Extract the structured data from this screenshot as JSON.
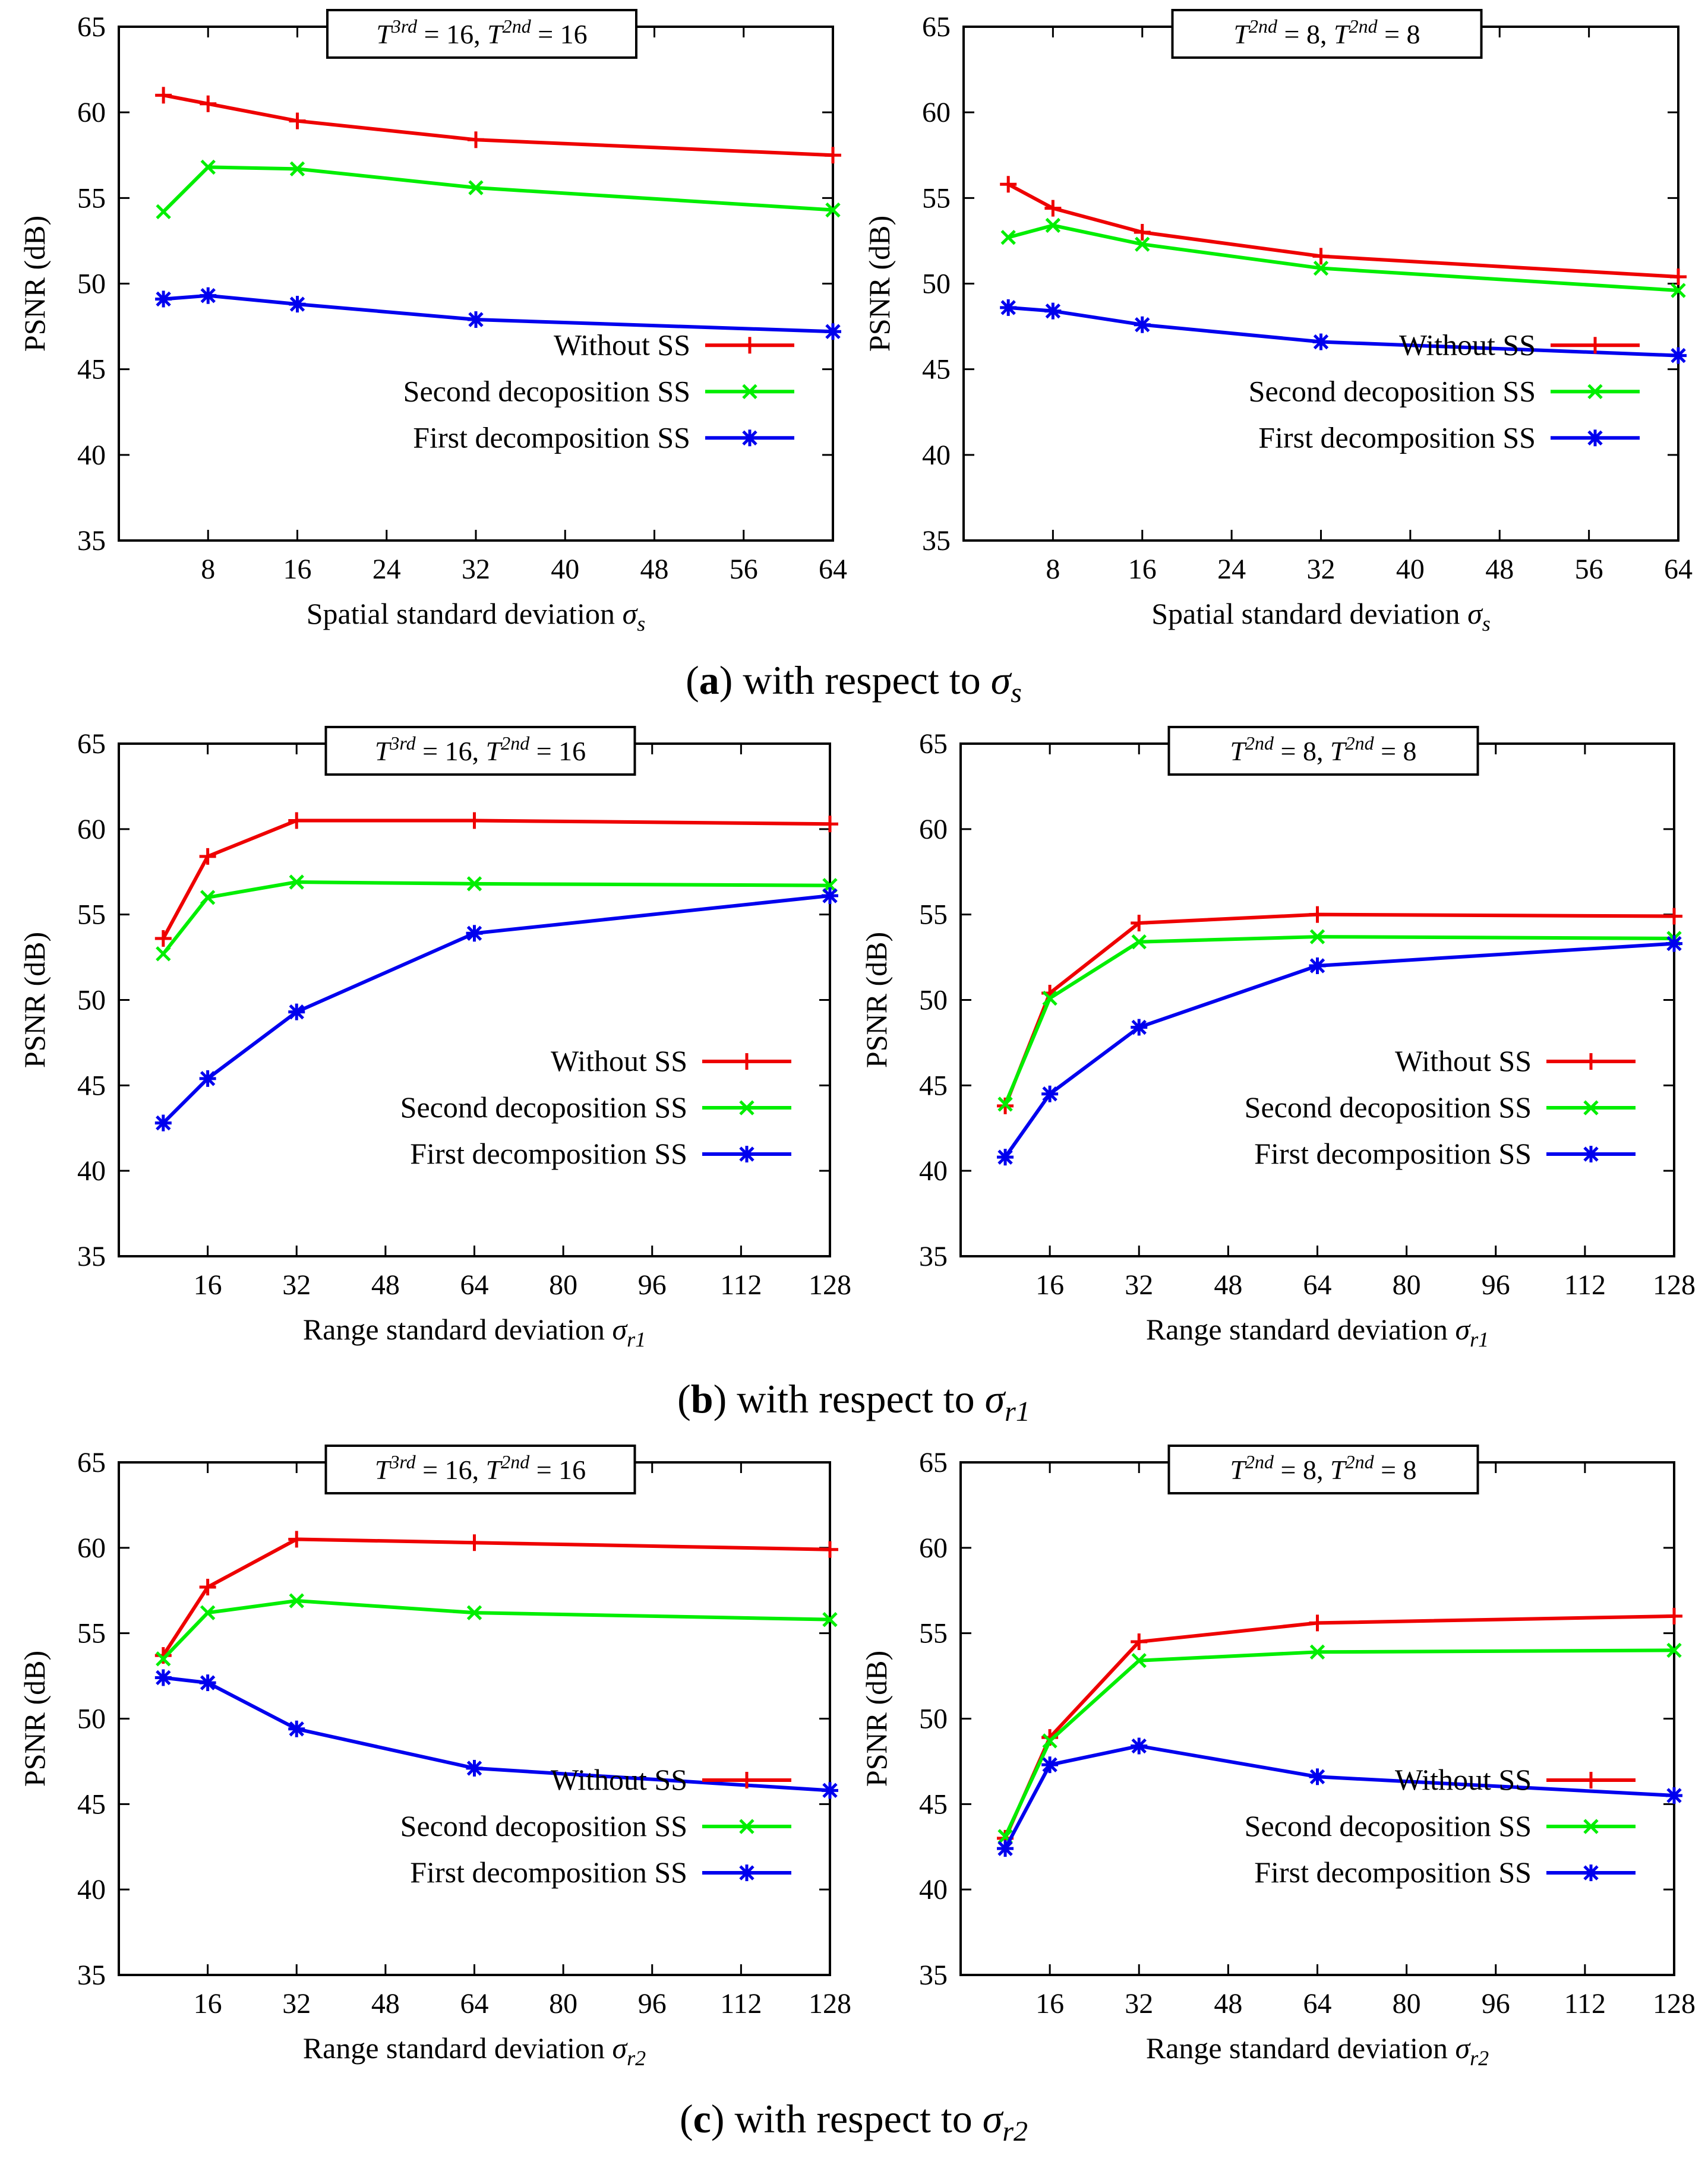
{
  "colors": {
    "without_ss": "#ee0000",
    "second_ss": "#00ee00",
    "first_ss": "#0000ee"
  },
  "panel_groups": [
    {
      "caption": {
        "label": "a",
        "text": " with respect to ",
        "sym": "σ",
        "sub": "s"
      }
    },
    {
      "caption": {
        "label": "b",
        "text": " with respect to ",
        "sym": "σ",
        "sub": "r1"
      }
    },
    {
      "caption": {
        "label": "c",
        "text": " with respect to ",
        "sym": "σ",
        "sub": "r2"
      }
    }
  ],
  "chart_data": [
    {
      "type": "line",
      "condition": {
        "v1": "T",
        "s1": "3rd",
        "e1": " = 16, ",
        "v2": "T",
        "s2": "2nd",
        "e2": " = 16"
      },
      "xlabel": {
        "text": "Spatial standard deviation ",
        "sym": "σ",
        "sub": "s"
      },
      "ylabel": "PSNR (dB)",
      "xlim": [
        0,
        64
      ],
      "ylim": [
        35,
        65
      ],
      "xticks": [
        8,
        16,
        24,
        32,
        40,
        48,
        56,
        64
      ],
      "yticks": [
        35,
        40,
        45,
        50,
        55,
        60,
        65
      ],
      "series": [
        {
          "name": "Without SS",
          "x": [
            4,
            8,
            16,
            32,
            64
          ],
          "values": [
            61.0,
            60.5,
            59.5,
            58.4,
            57.5
          ]
        },
        {
          "name": "Second decoposition SS",
          "x": [
            4,
            8,
            16,
            32,
            64
          ],
          "values": [
            54.2,
            56.8,
            56.7,
            55.6,
            54.3
          ]
        },
        {
          "name": "First decomposition SS",
          "x": [
            4,
            8,
            16,
            32,
            64
          ],
          "values": [
            49.1,
            49.3,
            48.8,
            47.9,
            47.2
          ]
        }
      ]
    },
    {
      "type": "line",
      "condition": {
        "v1": "T",
        "s1": "2nd",
        "e1": " = 8, ",
        "v2": "T",
        "s2": "2nd",
        "e2": " = 8"
      },
      "xlabel": {
        "text": "Spatial standard deviation ",
        "sym": "σ",
        "sub": "s"
      },
      "ylabel": "PSNR (dB)",
      "xlim": [
        0,
        64
      ],
      "ylim": [
        35,
        65
      ],
      "xticks": [
        8,
        16,
        24,
        32,
        40,
        48,
        56,
        64
      ],
      "yticks": [
        35,
        40,
        45,
        50,
        55,
        60,
        65
      ],
      "series": [
        {
          "name": "Without SS",
          "x": [
            4,
            8,
            16,
            32,
            64
          ],
          "values": [
            55.8,
            54.4,
            53.0,
            51.6,
            50.4
          ]
        },
        {
          "name": "Second decoposition SS",
          "x": [
            4,
            8,
            16,
            32,
            64
          ],
          "values": [
            52.7,
            53.4,
            52.3,
            50.9,
            49.6
          ]
        },
        {
          "name": "First decomposition SS",
          "x": [
            4,
            8,
            16,
            32,
            64
          ],
          "values": [
            48.6,
            48.4,
            47.6,
            46.6,
            45.8
          ]
        }
      ]
    },
    {
      "type": "line",
      "condition": {
        "v1": "T",
        "s1": "3rd",
        "e1": " = 16, ",
        "v2": "T",
        "s2": "2nd",
        "e2": " = 16"
      },
      "xlabel": {
        "text": "Range standard deviation ",
        "sym": "σ",
        "sub": "r1"
      },
      "ylabel": "PSNR (dB)",
      "xlim": [
        0,
        128
      ],
      "ylim": [
        35,
        65
      ],
      "xticks": [
        16,
        32,
        48,
        64,
        80,
        96,
        112,
        128
      ],
      "yticks": [
        35,
        40,
        45,
        50,
        55,
        60,
        65
      ],
      "series": [
        {
          "name": "Without SS",
          "x": [
            8,
            16,
            32,
            64,
            128
          ],
          "values": [
            53.6,
            58.4,
            60.5,
            60.5,
            60.3
          ]
        },
        {
          "name": "Second decoposition SS",
          "x": [
            8,
            16,
            32,
            64,
            128
          ],
          "values": [
            52.7,
            56.0,
            56.9,
            56.8,
            56.7
          ]
        },
        {
          "name": "First decomposition SS",
          "x": [
            8,
            16,
            32,
            64,
            128
          ],
          "values": [
            42.8,
            45.4,
            49.3,
            53.9,
            56.1
          ]
        }
      ]
    },
    {
      "type": "line",
      "condition": {
        "v1": "T",
        "s1": "2nd",
        "e1": " = 8, ",
        "v2": "T",
        "s2": "2nd",
        "e2": " = 8"
      },
      "xlabel": {
        "text": "Range standard deviation ",
        "sym": "σ",
        "sub": "r1"
      },
      "ylabel": "PSNR (dB)",
      "xlim": [
        0,
        128
      ],
      "ylim": [
        35,
        65
      ],
      "xticks": [
        16,
        32,
        48,
        64,
        80,
        96,
        112,
        128
      ],
      "yticks": [
        35,
        40,
        45,
        50,
        55,
        60,
        65
      ],
      "series": [
        {
          "name": "Without SS",
          "x": [
            8,
            16,
            32,
            64,
            128
          ],
          "values": [
            43.8,
            50.4,
            54.5,
            55.0,
            54.9
          ]
        },
        {
          "name": "Second decoposition SS",
          "x": [
            8,
            16,
            32,
            64,
            128
          ],
          "values": [
            43.9,
            50.1,
            53.4,
            53.7,
            53.6
          ]
        },
        {
          "name": "First decomposition SS",
          "x": [
            8,
            16,
            32,
            64,
            128
          ],
          "values": [
            40.8,
            44.5,
            48.4,
            52.0,
            53.3
          ]
        }
      ]
    },
    {
      "type": "line",
      "condition": {
        "v1": "T",
        "s1": "3rd",
        "e1": " = 16, ",
        "v2": "T",
        "s2": "2nd",
        "e2": " = 16"
      },
      "xlabel": {
        "text": "Range standard deviation ",
        "sym": "σ",
        "sub": "r2"
      },
      "ylabel": "PSNR (dB)",
      "xlim": [
        0,
        128
      ],
      "ylim": [
        35,
        65
      ],
      "xticks": [
        16,
        32,
        48,
        64,
        80,
        96,
        112,
        128
      ],
      "yticks": [
        35,
        40,
        45,
        50,
        55,
        60,
        65
      ],
      "series": [
        {
          "name": "Without SS",
          "x": [
            8,
            16,
            32,
            64,
            128
          ],
          "values": [
            53.7,
            57.7,
            60.5,
            60.3,
            59.9
          ]
        },
        {
          "name": "Second decoposition SS",
          "x": [
            8,
            16,
            32,
            64,
            128
          ],
          "values": [
            53.5,
            56.2,
            56.9,
            56.2,
            55.8
          ]
        },
        {
          "name": "First decomposition SS",
          "x": [
            8,
            16,
            32,
            64,
            128
          ],
          "values": [
            52.4,
            52.1,
            49.4,
            47.1,
            45.8
          ]
        }
      ]
    },
    {
      "type": "line",
      "condition": {
        "v1": "T",
        "s1": "2nd",
        "e1": " = 8, ",
        "v2": "T",
        "s2": "2nd",
        "e2": " = 8"
      },
      "xlabel": {
        "text": "Range standard deviation ",
        "sym": "σ",
        "sub": "r2"
      },
      "ylabel": "PSNR (dB)",
      "xlim": [
        0,
        128
      ],
      "ylim": [
        35,
        65
      ],
      "xticks": [
        16,
        32,
        48,
        64,
        80,
        96,
        112,
        128
      ],
      "yticks": [
        35,
        40,
        45,
        50,
        55,
        60,
        65
      ],
      "series": [
        {
          "name": "Without SS",
          "x": [
            8,
            16,
            32,
            64,
            128
          ],
          "values": [
            43.0,
            48.9,
            54.5,
            55.6,
            56.0
          ]
        },
        {
          "name": "Second decoposition SS",
          "x": [
            8,
            16,
            32,
            64,
            128
          ],
          "values": [
            43.1,
            48.7,
            53.4,
            53.9,
            54.0
          ]
        },
        {
          "name": "First decomposition SS",
          "x": [
            8,
            16,
            32,
            64,
            128
          ],
          "values": [
            42.4,
            47.3,
            48.4,
            46.6,
            45.5
          ]
        }
      ]
    }
  ]
}
